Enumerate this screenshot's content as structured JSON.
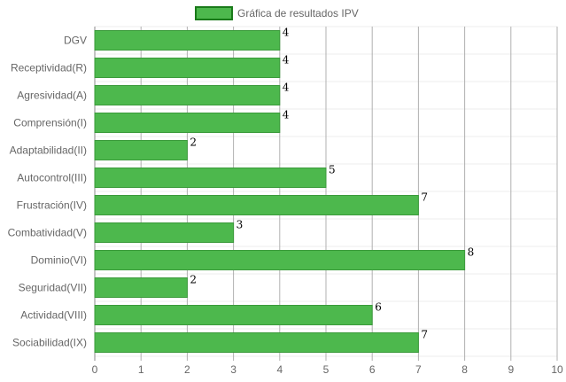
{
  "chart_data": {
    "type": "bar",
    "orientation": "horizontal",
    "categories": [
      "DGV",
      "Receptividad(R)",
      "Agresividad(A)",
      "Comprensión(I)",
      "Adaptabilidad(II)",
      "Autocontrol(III)",
      "Frustración(IV)",
      "Combatividad(V)",
      "Dominio(VI)",
      "Seguridad(VII)",
      "Actividad(VIII)",
      "Sociabilidad(IX)"
    ],
    "series": [
      {
        "name": "Gráfica de resultados IPV",
        "values": [
          4,
          4,
          4,
          4,
          2,
          5,
          7,
          3,
          8,
          2,
          6,
          7
        ]
      }
    ],
    "xlim": [
      0,
      10
    ],
    "xticks": [
      "0",
      "1",
      "2",
      "3",
      "4",
      "5",
      "6",
      "7",
      "8",
      "9",
      "10"
    ],
    "grid": true,
    "legend_position": "top-center",
    "data_labels": true,
    "colors": {
      "bar_fill": "#4db84d",
      "bar_border": "#3a9a3a",
      "legend_fill": "#4db84d",
      "legend_border": "#1a7a1a",
      "grid_vertical": "#b0b0b0",
      "grid_horizontal": "#ececec"
    }
  }
}
